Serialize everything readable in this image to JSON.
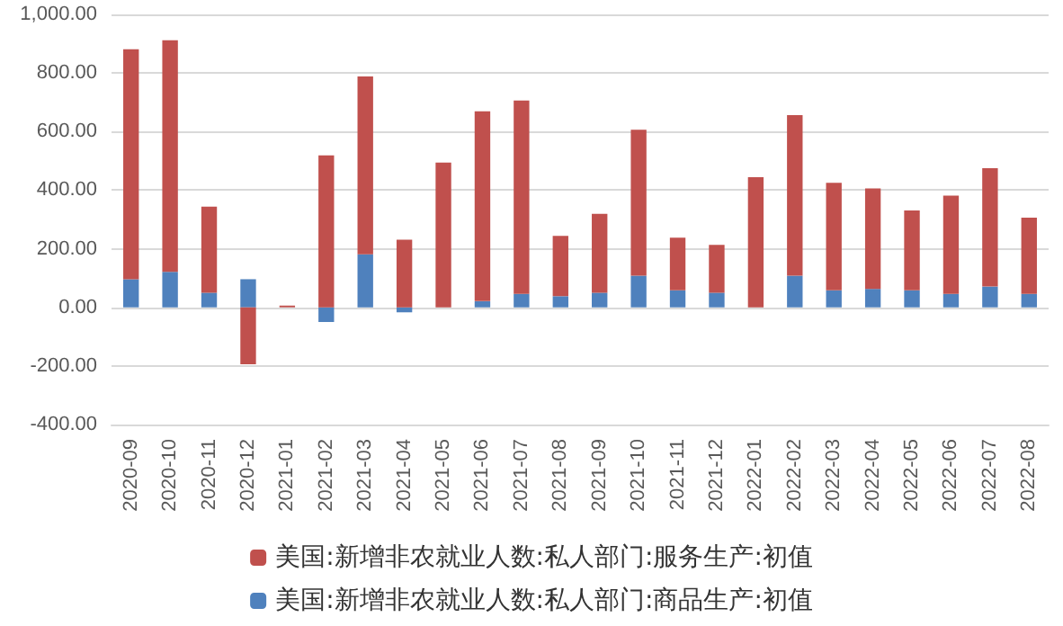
{
  "chart_data": {
    "type": "bar",
    "stacked": true,
    "categories": [
      "2020-09",
      "2020-10",
      "2020-11",
      "2020-12",
      "2021-01",
      "2021-02",
      "2021-03",
      "2021-04",
      "2021-05",
      "2021-06",
      "2021-07",
      "2021-08",
      "2021-09",
      "2021-10",
      "2021-11",
      "2021-12",
      "2022-01",
      "2022-02",
      "2022-03",
      "2022-04",
      "2022-05",
      "2022-06",
      "2022-07",
      "2022-08"
    ],
    "series": [
      {
        "name": "美国:新增非农就业人数:私人部门:商品生产:初值",
        "color": "#4f81bd",
        "values": [
          96,
          121,
          50,
          96,
          0,
          -50,
          181,
          -17,
          0,
          21,
          46,
          38,
          50,
          108,
          58,
          50,
          0,
          108,
          58,
          63,
          58,
          46,
          71,
          46
        ]
      },
      {
        "name": "美国:新增非农就业人数:私人部门:服务生产:初值",
        "color": "#c0504d",
        "values": [
          785,
          791,
          294,
          -194,
          6,
          519,
          607,
          231,
          494,
          648,
          660,
          206,
          269,
          498,
          180,
          163,
          444,
          548,
          367,
          343,
          273,
          335,
          404,
          260
        ]
      }
    ],
    "ylim": [
      -400,
      1000
    ],
    "yticks": [
      {
        "value": -400,
        "label": "-400.00"
      },
      {
        "value": -200,
        "label": "-200.00"
      },
      {
        "value": 0,
        "label": "0.00"
      },
      {
        "value": 200,
        "label": "200.00"
      },
      {
        "value": 400,
        "label": "400.00"
      },
      {
        "value": 600,
        "label": "600.00"
      },
      {
        "value": 800,
        "label": "800.00"
      },
      {
        "value": 1000,
        "label": "1,000.00"
      }
    ],
    "grid": "y",
    "legend": "bottom"
  }
}
